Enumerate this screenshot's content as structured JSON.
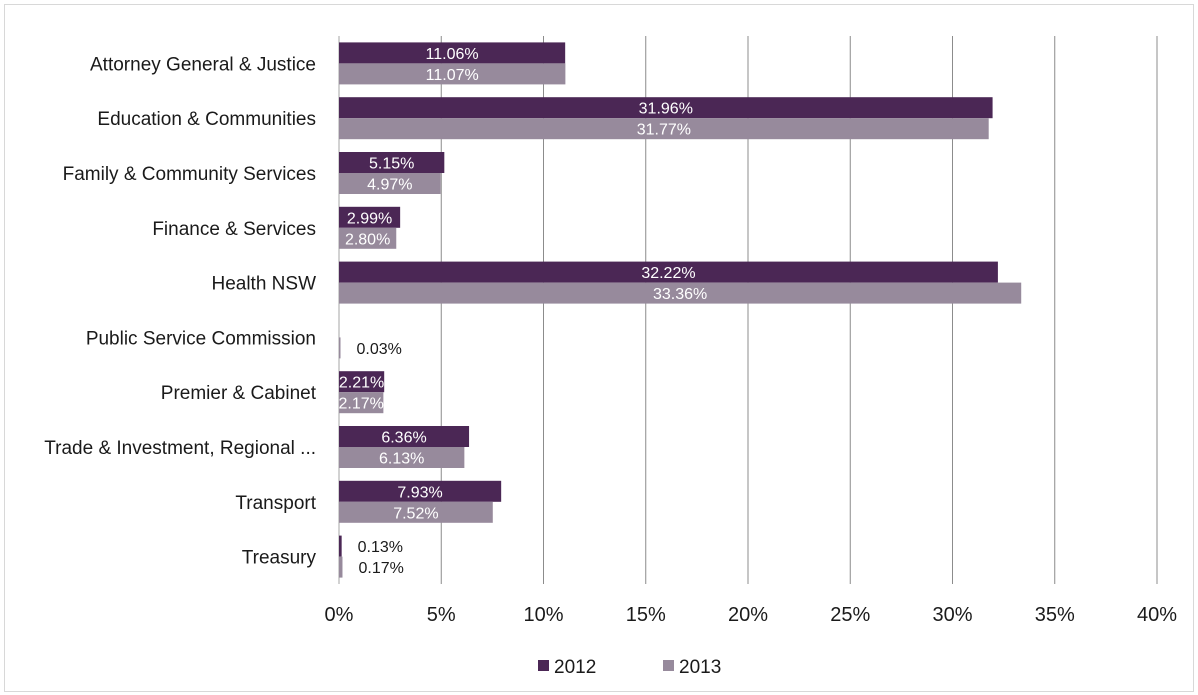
{
  "chart_data": {
    "type": "bar",
    "orientation": "horizontal",
    "categories": [
      "Attorney General & Justice",
      "Education & Communities",
      "Family & Community Services",
      "Finance & Services",
      "Health NSW",
      "Public Service Commission",
      "Premier & Cabinet",
      "Trade & Investment, Regional ...",
      "Transport",
      "Treasury"
    ],
    "series": [
      {
        "name": "2012",
        "color": "#4b2755",
        "values": [
          11.06,
          31.96,
          5.15,
          2.99,
          32.22,
          null,
          2.21,
          6.36,
          7.93,
          0.13
        ],
        "labels": [
          "11.06%",
          "31.96%",
          "5.15%",
          "2.99%",
          "32.22%",
          "",
          "2.21%",
          "6.36%",
          "7.93%",
          "0.13%"
        ]
      },
      {
        "name": "2013",
        "color": "#978a9c",
        "values": [
          11.07,
          31.77,
          4.97,
          2.8,
          33.36,
          0.03,
          2.17,
          6.13,
          7.52,
          0.17
        ],
        "labels": [
          "11.07%",
          "31.77%",
          "4.97%",
          "2.80%",
          "33.36%",
          "0.03%",
          "2.17%",
          "6.13%",
          "7.52%",
          "0.17%"
        ]
      }
    ],
    "xlim": [
      0,
      40
    ],
    "xticks": [
      0,
      5,
      10,
      15,
      20,
      25,
      30,
      35,
      40
    ],
    "xtick_labels": [
      "0%",
      "5%",
      "10%",
      "15%",
      "20%",
      "25%",
      "30%",
      "35%",
      "40%"
    ],
    "grid": true,
    "legend_position": "bottom",
    "title": "",
    "xlabel": "",
    "ylabel": ""
  }
}
